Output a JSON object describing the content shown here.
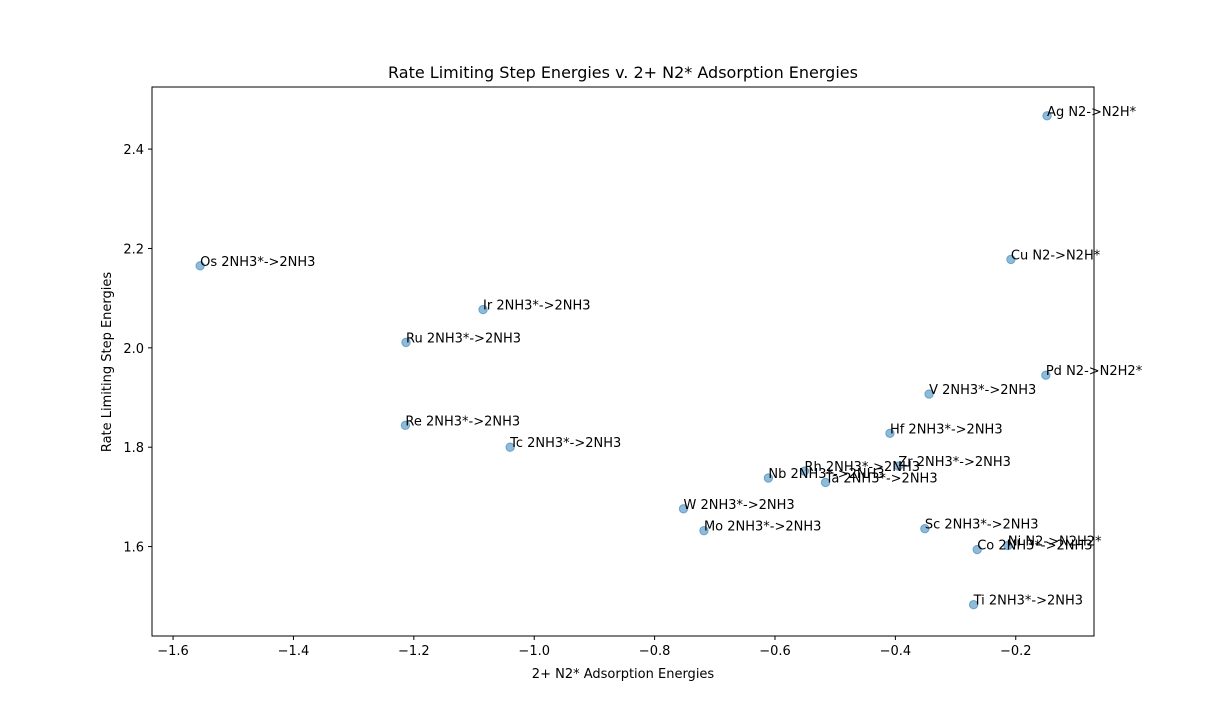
{
  "chart_data": {
    "type": "scatter",
    "title": "Rate Limiting Step Energies v. 2+ N2* Adsorption Energies",
    "xlabel": "2+ N2* Adsorption Energies",
    "ylabel": "Rate Limiting Step Energies",
    "xlim": [
      -1.635,
      -0.07
    ],
    "ylim": [
      1.42,
      2.525
    ],
    "xticks": [
      -1.6,
      -1.4,
      -1.2,
      -1.0,
      -0.8,
      -0.6,
      -0.4,
      -0.2
    ],
    "xtick_labels": [
      "−1.6",
      "−1.4",
      "−1.2",
      "−1.0",
      "−0.8",
      "−0.6",
      "−0.4",
      "−0.2"
    ],
    "yticks": [
      1.6,
      1.8,
      2.0,
      2.2,
      2.4
    ],
    "ytick_labels": [
      "1.6",
      "1.8",
      "2.0",
      "2.2",
      "2.4"
    ],
    "grid": false,
    "marker_color": "#1f77b4",
    "points": [
      {
        "x": -0.148,
        "y": 2.467,
        "label": "Ag N2->N2H*"
      },
      {
        "x": -0.208,
        "y": 2.178,
        "label": "Cu N2->N2H*"
      },
      {
        "x": -1.555,
        "y": 2.165,
        "label": "Os 2NH3*->2NH3"
      },
      {
        "x": -1.085,
        "y": 2.077,
        "label": "Ir 2NH3*->2NH3"
      },
      {
        "x": -1.213,
        "y": 2.011,
        "label": "Ru 2NH3*->2NH3"
      },
      {
        "x": -0.15,
        "y": 1.945,
        "label": "Pd N2->N2H2*"
      },
      {
        "x": -0.344,
        "y": 1.907,
        "label": "V 2NH3*->2NH3"
      },
      {
        "x": -1.214,
        "y": 1.844,
        "label": "Re 2NH3*->2NH3"
      },
      {
        "x": -0.409,
        "y": 1.828,
        "label": "Hf 2NH3*->2NH3"
      },
      {
        "x": -1.04,
        "y": 1.8,
        "label": "Tc 2NH3*->2NH3"
      },
      {
        "x": -0.395,
        "y": 1.762,
        "label": "Zr 2NH3*->2NH3"
      },
      {
        "x": -0.551,
        "y": 1.752,
        "label": "Rh 2NH3*->2NH3"
      },
      {
        "x": -0.611,
        "y": 1.738,
        "label": "Nb 2NH3*->2NH3"
      },
      {
        "x": -0.516,
        "y": 1.729,
        "label": "Ta 2NH3*->2NH3"
      },
      {
        "x": -0.752,
        "y": 1.676,
        "label": "W 2NH3*->2NH3"
      },
      {
        "x": -0.351,
        "y": 1.636,
        "label": "Sc 2NH3*->2NH3"
      },
      {
        "x": -0.718,
        "y": 1.632,
        "label": "Mo 2NH3*->2NH3"
      },
      {
        "x": -0.213,
        "y": 1.602,
        "label": "Ni N2->N2H2*"
      },
      {
        "x": -0.264,
        "y": 1.594,
        "label": "Co 2NH3*->2NH3"
      },
      {
        "x": -0.27,
        "y": 1.483,
        "label": "Ti 2NH3*->2NH3"
      }
    ]
  }
}
